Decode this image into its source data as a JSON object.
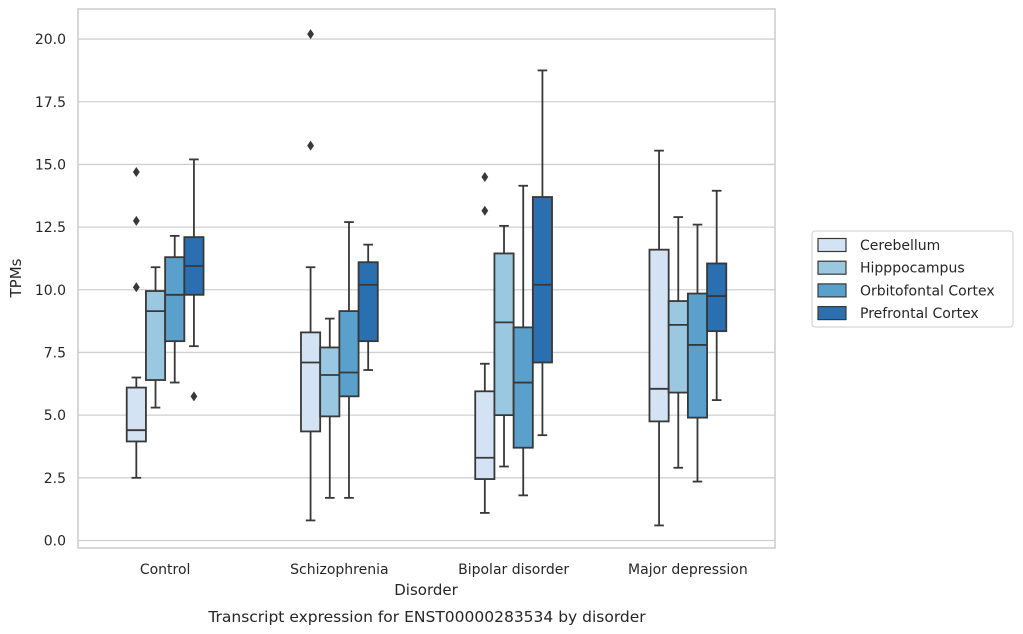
{
  "chart_data": {
    "type": "box",
    "xlabel": "Disorder",
    "ylabel": "TPMs",
    "caption": "Transcript expression for ENST00000283534 by disorder",
    "categories": [
      "Control",
      "Schizophrenia",
      "Bipolar disorder",
      "Major depression"
    ],
    "ylim": [
      -0.3,
      21.2
    ],
    "yticks": [
      "0.0",
      "2.5",
      "5.0",
      "7.5",
      "10.0",
      "12.5",
      "15.0",
      "17.5",
      "20.0"
    ],
    "grid": "horizontal",
    "legend_position": "right",
    "series": [
      {
        "name": "Cerebellum",
        "color": "#d3e3f3",
        "boxes": [
          {
            "whisker_low": 2.5,
            "q1": 3.95,
            "median": 4.4,
            "q3": 6.1,
            "whisker_high": 6.5,
            "outliers": [
              10.1,
              12.75,
              14.7
            ]
          },
          {
            "whisker_low": 0.8,
            "q1": 4.35,
            "median": 7.1,
            "q3": 8.3,
            "whisker_high": 10.9,
            "outliers": [
              15.75,
              20.2
            ]
          },
          {
            "whisker_low": 1.1,
            "q1": 2.45,
            "median": 3.3,
            "q3": 5.95,
            "whisker_high": 7.05,
            "outliers": [
              13.15,
              14.5
            ]
          },
          {
            "whisker_low": 0.6,
            "q1": 4.75,
            "median": 6.05,
            "q3": 11.6,
            "whisker_high": 15.55,
            "outliers": []
          }
        ]
      },
      {
        "name": "Hipppocampus",
        "color": "#9ac8e0",
        "boxes": [
          {
            "whisker_low": 5.3,
            "q1": 6.4,
            "median": 9.15,
            "q3": 9.95,
            "whisker_high": 10.9,
            "outliers": []
          },
          {
            "whisker_low": 1.7,
            "q1": 4.95,
            "median": 6.6,
            "q3": 7.7,
            "whisker_high": 8.85,
            "outliers": []
          },
          {
            "whisker_low": 2.95,
            "q1": 5.0,
            "median": 8.7,
            "q3": 11.45,
            "whisker_high": 12.55,
            "outliers": []
          },
          {
            "whisker_low": 2.9,
            "q1": 5.9,
            "median": 8.6,
            "q3": 9.55,
            "whisker_high": 12.9,
            "outliers": []
          }
        ]
      },
      {
        "name": "Orbitofontal Cortex",
        "color": "#5aa0cd",
        "boxes": [
          {
            "whisker_low": 6.3,
            "q1": 7.95,
            "median": 9.8,
            "q3": 11.3,
            "whisker_high": 12.15,
            "outliers": []
          },
          {
            "whisker_low": 1.7,
            "q1": 5.75,
            "median": 6.7,
            "q3": 9.15,
            "whisker_high": 12.7,
            "outliers": []
          },
          {
            "whisker_low": 1.8,
            "q1": 3.7,
            "median": 6.3,
            "q3": 8.5,
            "whisker_high": 14.15,
            "outliers": []
          },
          {
            "whisker_low": 2.35,
            "q1": 4.9,
            "median": 7.8,
            "q3": 9.85,
            "whisker_high": 12.6,
            "outliers": []
          }
        ]
      },
      {
        "name": "Prefrontal Cortex",
        "color": "#2a6fb0",
        "boxes": [
          {
            "whisker_low": 7.75,
            "q1": 9.8,
            "median": 10.95,
            "q3": 12.1,
            "whisker_high": 15.2,
            "outliers": [
              5.75
            ]
          },
          {
            "whisker_low": 6.8,
            "q1": 7.95,
            "median": 10.2,
            "q3": 11.1,
            "whisker_high": 11.8,
            "outliers": []
          },
          {
            "whisker_low": 4.2,
            "q1": 7.1,
            "median": 10.2,
            "q3": 13.7,
            "whisker_high": 18.75,
            "outliers": []
          },
          {
            "whisker_low": 5.6,
            "q1": 8.35,
            "median": 9.75,
            "q3": 11.05,
            "whisker_high": 13.95,
            "outliers": []
          }
        ]
      }
    ]
  }
}
